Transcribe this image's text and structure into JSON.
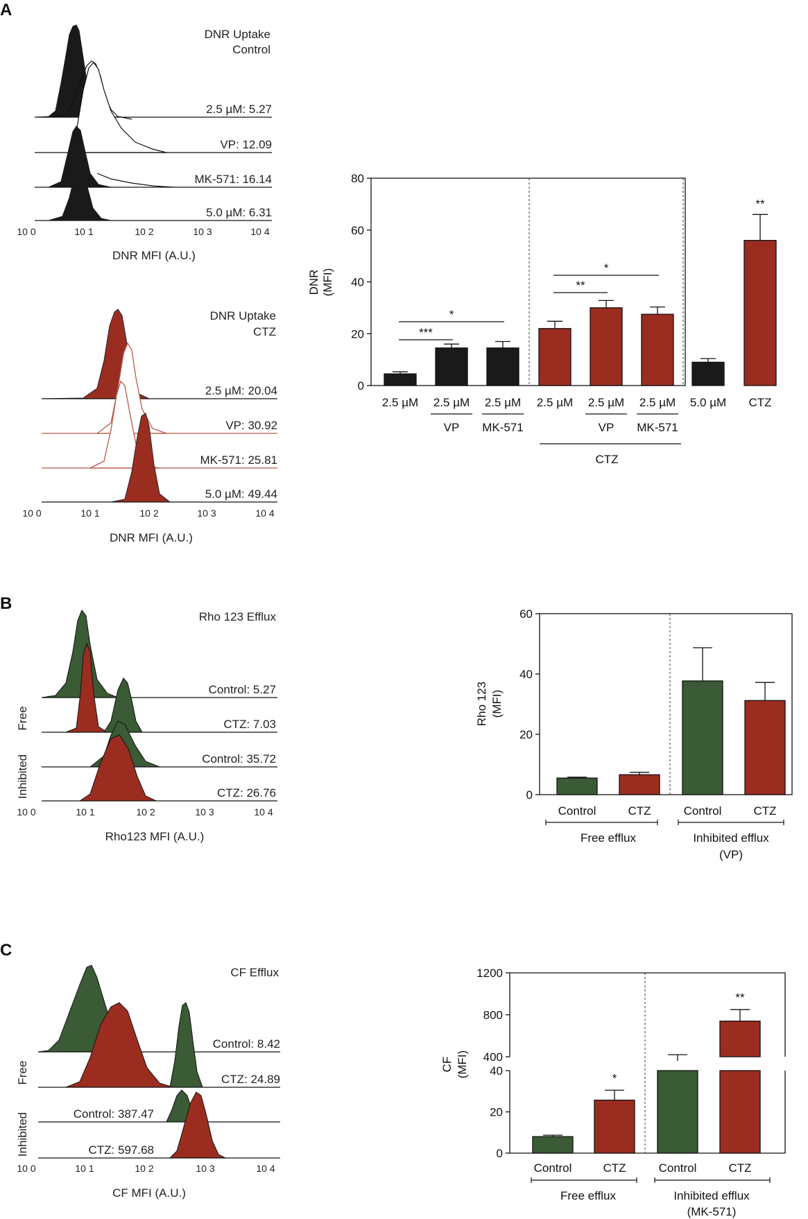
{
  "colors": {
    "black": "#1a1a1a",
    "red": "#9b2d20",
    "green": "#3b5a36",
    "redLine": "#b55a4a"
  },
  "panelA": {
    "letter": "A",
    "histControl": {
      "title1": "DNR Uptake",
      "title2": "Control",
      "rows": [
        "2.5 µM: 5.27",
        "VP: 12.09",
        "MK-571: 16.14",
        "5.0 µM: 6.31"
      ],
      "xticks": [
        "10 0",
        "10 1",
        "10 2",
        "10 3",
        "10 4"
      ],
      "xlabel": "DNR MFI (A.U.)"
    },
    "histCTZ": {
      "title1": "DNR Uptake",
      "title2": "CTZ",
      "rows": [
        "2.5 µM: 20.04",
        "VP: 30.92",
        "MK-571: 25.81",
        "5.0 µM: 49.44"
      ],
      "xticks": [
        "10 0",
        "10 1",
        "10 2",
        "10 3",
        "10 4"
      ],
      "xlabel": "DNR MFI (A.U.)"
    }
  },
  "panelB": {
    "letter": "B",
    "hist": {
      "title": "Rho 123 Efflux",
      "rows": [
        "Control: 5.27",
        "CTZ: 7.03",
        "Control: 35.72",
        "CTZ: 26.76"
      ],
      "sideLabels": [
        "Free",
        "Inhibited"
      ],
      "xticks": [
        "10 0",
        "10 1",
        "10 2",
        "10 3",
        "10 4"
      ],
      "xlabel": "Rho123 MFI (A.U.)"
    }
  },
  "panelC": {
    "letter": "C",
    "hist": {
      "title": "CF Efflux",
      "rows": [
        "Control: 8.42",
        "CTZ: 24.89",
        "Control: 387.47",
        "CTZ: 597.68"
      ],
      "sideLabels": [
        "Free",
        "Inhibited"
      ],
      "xticks": [
        "10 0",
        "10 1",
        "10 2",
        "10 3",
        "10 4"
      ],
      "xlabel": "CF MFI (A.U.)"
    }
  },
  "chart_data": [
    {
      "type": "bar",
      "ylabel": "DNR",
      "ylabel2": "(MFI)",
      "ylim": [
        0,
        80
      ],
      "yticks": [
        0,
        20,
        40,
        60,
        80
      ],
      "categories": [
        "2.5 µM",
        "2.5 µM",
        "2.5 µM",
        "2.5 µM",
        "2.5 µM",
        "2.5 µM",
        "5.0 µM",
        "CTZ"
      ],
      "values": [
        4.5,
        14.5,
        14.5,
        22,
        30,
        27.5,
        9,
        56
      ],
      "errors": [
        0.8,
        1.5,
        2.5,
        2.8,
        2.8,
        2.8,
        1.4,
        10
      ],
      "colors": [
        "black",
        "black",
        "black",
        "red",
        "red",
        "red",
        "black",
        "red"
      ],
      "sublabels": [
        "",
        "VP",
        "MK-571",
        "",
        "VP",
        "MK-571",
        "",
        ""
      ],
      "groupLabel": "CTZ",
      "significance": [
        {
          "from": 0,
          "to": 1,
          "label": "***"
        },
        {
          "from": 0,
          "to": 2,
          "label": "*"
        },
        {
          "from": 3,
          "to": 4,
          "label": "**"
        },
        {
          "from": 3,
          "to": 5,
          "label": "*"
        },
        {
          "bar": 7,
          "label": "**"
        }
      ]
    },
    {
      "type": "bar",
      "ylabel": "Rho 123",
      "ylabel2": "(MFI)",
      "ylim": [
        0,
        60
      ],
      "yticks": [
        0,
        20,
        40,
        60
      ],
      "categories": [
        "Control",
        "CTZ",
        "Control",
        "CTZ"
      ],
      "values": [
        5.5,
        6.6,
        37.7,
        31.2
      ],
      "errors": [
        0.3,
        0.8,
        11,
        6
      ],
      "colors": [
        "green",
        "red",
        "green",
        "red"
      ],
      "groups": [
        "Free efflux",
        "Inhibited efflux",
        "(VP)"
      ]
    },
    {
      "type": "bar",
      "ylabel": "CF",
      "ylabel2": "(MFI)",
      "ylimLower": [
        0,
        40
      ],
      "ylimUpper": [
        400,
        1200
      ],
      "yticksLower": [
        0,
        20,
        40
      ],
      "yticksUpper": [
        400,
        800,
        1200
      ],
      "categories": [
        "Control",
        "CTZ",
        "Control",
        "CTZ"
      ],
      "values": [
        8,
        25.7,
        360,
        740
      ],
      "errors": [
        0.7,
        4.8,
        60,
        110
      ],
      "colors": [
        "green",
        "red",
        "green",
        "red"
      ],
      "groups": [
        "Free efflux",
        "Inhibited efflux",
        "(MK-571)"
      ],
      "significance": [
        {
          "bar": 1,
          "label": "*"
        },
        {
          "bar": 3,
          "label": "**"
        }
      ]
    }
  ]
}
